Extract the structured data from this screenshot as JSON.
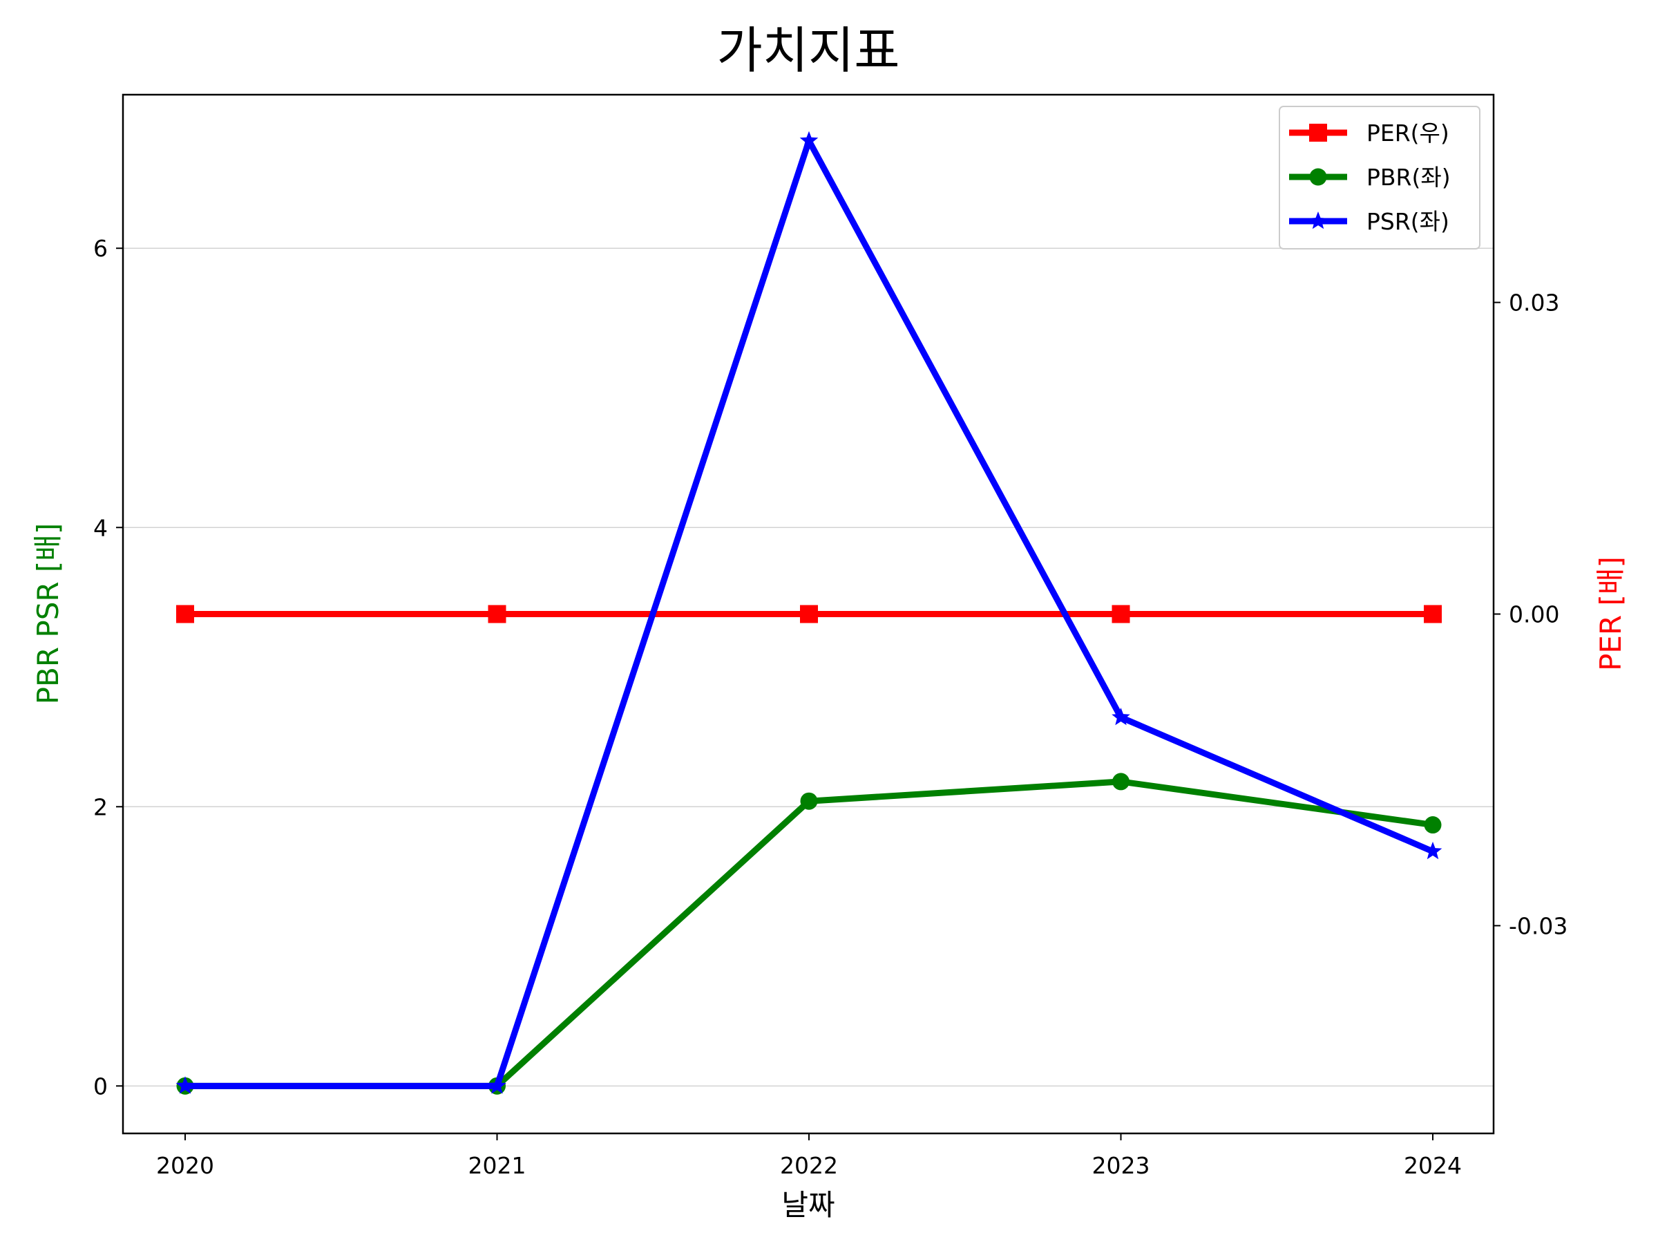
{
  "chart_data": {
    "type": "line",
    "title": "가치지표",
    "xlabel": "날짜",
    "ylabel_left": "PBR PSR [배]",
    "ylabel_right": "PER [배]",
    "x": [
      "2020",
      "2021",
      "2022",
      "2023",
      "2024"
    ],
    "ylim_left": [
      -0.34,
      7.1
    ],
    "yticks_left": [
      0,
      2,
      4,
      6
    ],
    "ytick_labels_left": [
      "0",
      "2",
      "4",
      "6"
    ],
    "ylim_right": [
      -0.05,
      0.05
    ],
    "yticks_right": [
      0.03,
      0.0,
      -0.03
    ],
    "ytick_labels_right": [
      "0.03",
      "0.00",
      "-0.03"
    ],
    "grid": "horizontal",
    "legend_position": "top-right",
    "label_colors": {
      "left": "#008000",
      "right": "#ff0000"
    },
    "series": [
      {
        "name": "PER(우)",
        "axis": "right",
        "color": "#ff0000",
        "marker": "square",
        "values": [
          0.0,
          0.0,
          0.0,
          0.0,
          0.0
        ]
      },
      {
        "name": "PBR(좌)",
        "axis": "left",
        "color": "#008000",
        "marker": "circle",
        "values": [
          0.0,
          0.0,
          2.04,
          2.18,
          1.87
        ]
      },
      {
        "name": "PSR(좌)",
        "axis": "left",
        "color": "#0000ff",
        "marker": "star",
        "values": [
          0.0,
          0.0,
          6.77,
          2.64,
          1.68
        ]
      }
    ]
  }
}
